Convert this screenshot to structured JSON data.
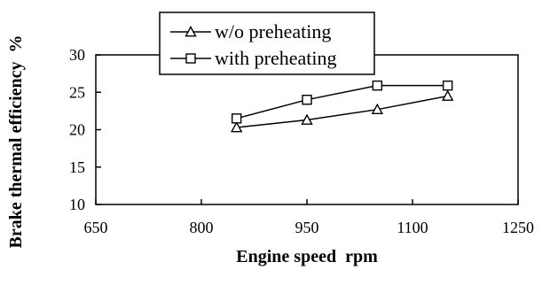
{
  "chart_data": {
    "type": "line",
    "title": "",
    "xlabel": "Engine speed  rpm",
    "ylabel": "Brake thermal efficiency  %",
    "xlim": [
      650,
      1250
    ],
    "ylim": [
      10,
      30
    ],
    "xticks": [
      "650",
      "800",
      "950",
      "1100",
      "1250"
    ],
    "yticks": [
      "10",
      "15",
      "20",
      "25",
      "30"
    ],
    "grid": false,
    "legend_position": "top-right",
    "series": [
      {
        "name": "w/o preheating",
        "marker": "triangle",
        "x": [
          850,
          950,
          1050,
          1150
        ],
        "y": [
          20.3,
          21.3,
          22.7,
          24.5
        ]
      },
      {
        "name": "with preheating",
        "marker": "square",
        "x": [
          850,
          950,
          1050,
          1150
        ],
        "y": [
          21.5,
          24.0,
          25.9,
          25.9
        ]
      }
    ]
  }
}
